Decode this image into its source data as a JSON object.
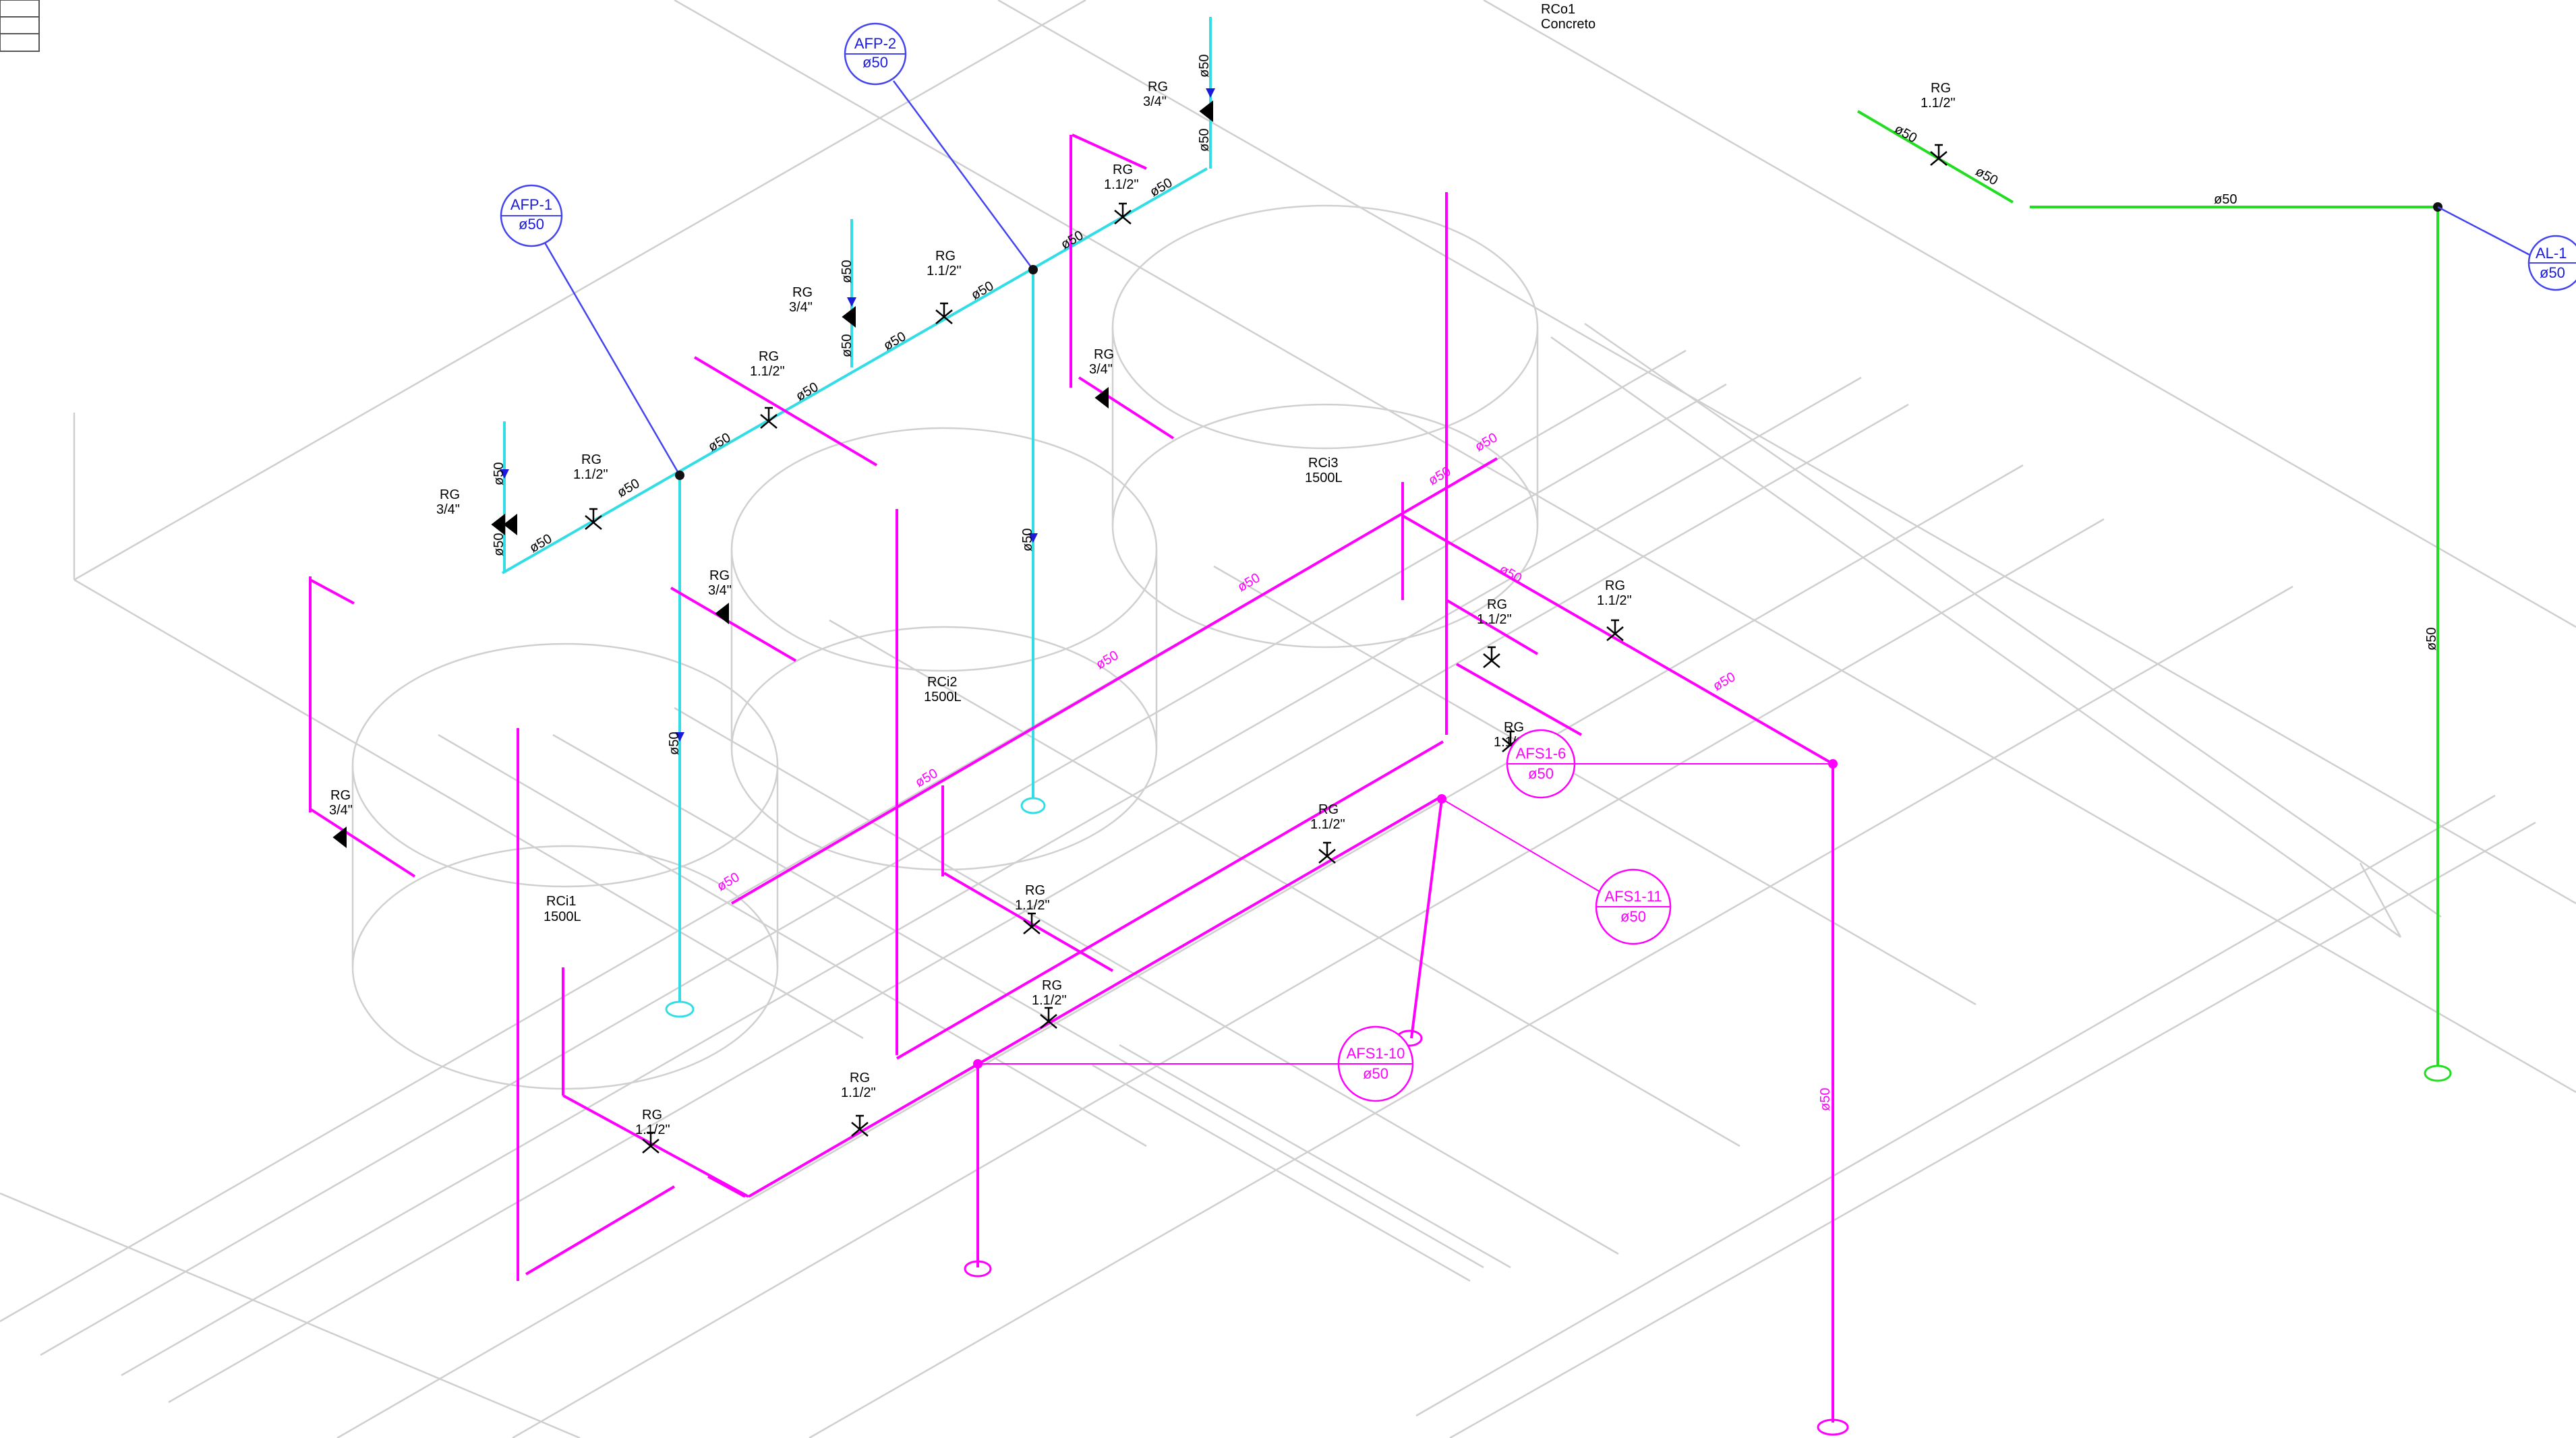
{
  "colors": {
    "cold_water": "#33dde6",
    "fire_line": "#ff00ff",
    "rain_line": "#22dd22",
    "tag_blue": "#1a1adb",
    "base_grey": "#c8c8c8"
  },
  "reservoirs": {
    "rco1_name": "RCo1",
    "rco1_material": "Concreto",
    "rci1_name": "RCi1",
    "rci1_volume": "1500L",
    "rci2_name": "RCi2",
    "rci2_volume": "1500L",
    "rci3_name": "RCi3",
    "rci3_volume": "1500L"
  },
  "tags": {
    "afp1_code": "AFP-1",
    "afp1_dia": "ø50",
    "afp2_code": "AFP-2",
    "afp2_dia": "ø50",
    "al1_code": "AL-1",
    "al1_dia": "ø50",
    "afs16_code": "AFS1-6",
    "afs16_dia": "ø50",
    "afs111_code": "AFS1-11",
    "afs111_dia": "ø50",
    "afs110_code": "AFS1-10",
    "afs110_dia": "ø50"
  },
  "valves": {
    "rg": "RG",
    "size_large": "1.1/2\"",
    "size_small": "3/4\""
  },
  "diameter": "ø50"
}
